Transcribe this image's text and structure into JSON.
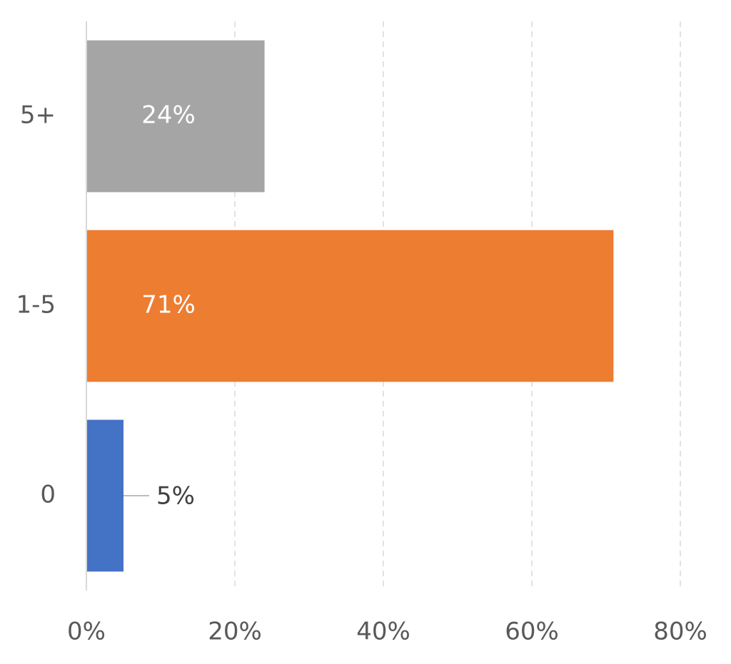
{
  "chart_data": {
    "type": "bar",
    "orientation": "horizontal",
    "categories": [
      "0",
      "1-5",
      "5+"
    ],
    "values": [
      5,
      71,
      24
    ],
    "value_labels": [
      "5%",
      "71%",
      "24%"
    ],
    "colors": [
      "#4472c4",
      "#ed7d31",
      "#a5a5a5"
    ],
    "xlim": [
      0,
      80
    ],
    "xticks": [
      {
        "value": 0,
        "label": "0%"
      },
      {
        "value": 20,
        "label": "20%"
      },
      {
        "value": 40,
        "label": "40%"
      },
      {
        "value": 60,
        "label": "60%"
      },
      {
        "value": 80,
        "label": "80%"
      }
    ],
    "grid": true
  }
}
